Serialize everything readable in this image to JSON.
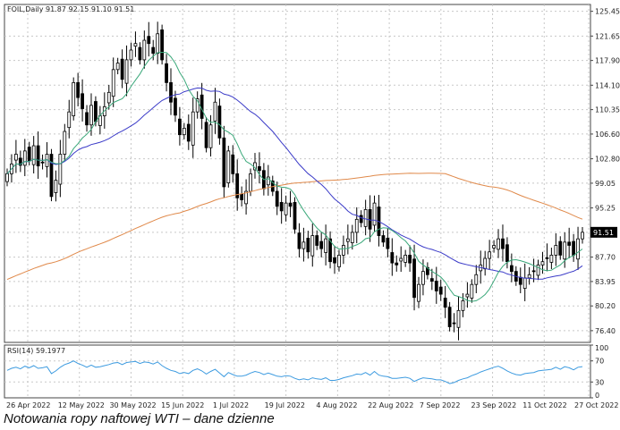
{
  "caption": "Notowania ropy naftowej WTI – dane dzienne",
  "colors": {
    "grid": "#c8c8c8",
    "axis": "#444444",
    "bull": "#ffffff",
    "bear": "#000000",
    "ma_fast": "#3aa87a",
    "ma_mid": "#3b3bc8",
    "ma_slow": "#e0894a",
    "rsi": "#3d9be0",
    "price_tag_bg": "#000000",
    "price_tag_fg": "#ffffff"
  },
  "chart_data": [
    {
      "type": "candlestick",
      "header": "FOIL,Daily  91.87 92.15 91.10 91.51",
      "symbol": "FOIL",
      "timeframe": "Daily",
      "last_bar": {
        "open": 91.87,
        "high": 92.15,
        "low": 91.1,
        "close": 91.51
      },
      "last_price_tag": "91.51",
      "x_tick_labels": [
        "26 Apr 2022",
        "12 May 2022",
        "30 May 2022",
        "15 Jun 2022",
        "1 Jul 2022",
        "19 Jul 2022",
        "4 Aug 2022",
        "22 Aug 2022",
        "7 Sep 2022",
        "23 Sep 2022",
        "11 Oct 2022",
        "27 Oct 2022"
      ],
      "y_tick_labels": [
        "125.45",
        "121.65",
        "117.90",
        "114.10",
        "110.35",
        "106.60",
        "102.80",
        "99.05",
        "95.25",
        "91.50",
        "87.70",
        "83.95",
        "80.20",
        "76.40"
      ],
      "ylim": [
        74.6,
        126.5
      ],
      "grid": true,
      "series_lines": [
        {
          "role": "fast moving average",
          "color": "#3aa87a"
        },
        {
          "role": "slow moving average",
          "color": "#3b3bc8"
        },
        {
          "role": "long moving average",
          "color": "#e0894a"
        }
      ],
      "close": [
        100.5,
        102.0,
        103.5,
        101.8,
        104.0,
        102.5,
        104.8,
        101.7,
        102.2,
        103.5,
        97.0,
        99.5,
        103.5,
        107.0,
        110.0,
        114.5,
        112.2,
        110.5,
        108.0,
        111.0,
        108.5,
        109.4,
        110.8,
        113.0,
        116.5,
        117.5,
        115.0,
        118.0,
        119.5,
        120.5,
        118.0,
        121.0,
        120.5,
        119.0,
        122.0,
        118.0,
        114.5,
        111.5,
        109.5,
        106.5,
        107.5,
        105.5,
        110.0,
        112.0,
        109.0,
        104.5,
        108.0,
        111.5,
        106.0,
        98.5,
        104.0,
        100.5,
        96.8,
        96.5,
        97.8,
        100.5,
        102.2,
        101.0,
        98.2,
        100.0,
        97.8,
        95.5,
        94.8,
        96.0,
        95.5,
        92.0,
        89.0,
        90.0,
        88.5,
        91.0,
        89.5,
        89.0,
        90.5,
        87.0,
        86.8,
        88.0,
        89.5,
        90.5,
        91.5,
        93.5,
        93.0,
        95.0,
        92.0,
        96.0,
        91.0,
        90.0,
        89.0,
        86.8,
        86.5,
        87.5,
        88.0,
        86.8,
        81.5,
        83.5,
        85.5,
        85.0,
        84.0,
        82.5,
        82.0,
        80.0,
        77.0,
        77.5,
        79.5,
        81.0,
        82.0,
        83.5,
        85.0,
        86.5,
        87.5,
        88.5,
        89.5,
        90.5,
        89.0,
        87.0,
        85.5,
        84.0,
        83.5,
        84.5,
        85.0,
        85.5,
        86.5,
        87.0,
        87.5,
        88.0,
        89.5,
        88.0,
        90.0,
        89.5,
        88.0,
        90.5,
        91.51
      ]
    },
    {
      "type": "line",
      "header": "RSI(14) 59.1977",
      "indicator": "RSI(14)",
      "last_value": 59.1977,
      "y_tick_labels": [
        "100",
        "70",
        "30",
        "0"
      ],
      "ylim": [
        0,
        100
      ],
      "values": [
        52,
        56,
        58,
        55,
        60,
        57,
        61,
        56,
        57,
        59,
        46,
        51,
        58,
        63,
        66,
        70,
        65,
        62,
        58,
        62,
        58,
        59,
        61,
        63,
        66,
        67,
        63,
        67,
        68,
        69,
        65,
        68,
        67,
        64,
        68,
        61,
        56,
        52,
        50,
        46,
        48,
        46,
        52,
        55,
        51,
        45,
        50,
        54,
        47,
        40,
        48,
        44,
        41,
        41,
        43,
        47,
        50,
        48,
        44,
        47,
        44,
        41,
        40,
        42,
        41,
        37,
        34,
        36,
        34,
        38,
        36,
        35,
        38,
        33,
        33,
        35,
        38,
        40,
        42,
        45,
        44,
        48,
        43,
        50,
        43,
        41,
        40,
        37,
        37,
        38,
        39,
        37,
        31,
        35,
        38,
        37,
        36,
        34,
        34,
        31,
        27,
        29,
        33,
        36,
        38,
        42,
        45,
        49,
        52,
        55,
        58,
        60,
        56,
        51,
        47,
        44,
        43,
        46,
        47,
        48,
        51,
        52,
        53,
        54,
        58,
        54,
        59,
        57,
        53,
        58,
        59.2
      ]
    }
  ]
}
